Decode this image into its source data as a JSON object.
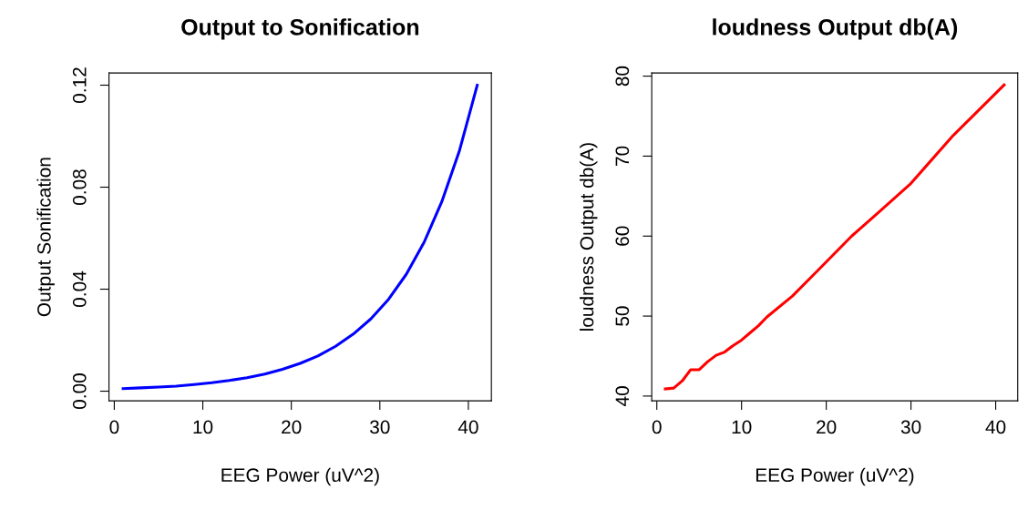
{
  "chart_data": [
    {
      "type": "line",
      "title": "Output to Sonification",
      "xlabel": "EEG Power (uV^2)",
      "ylabel": "Output Sonification",
      "x": [
        1,
        3,
        5,
        7,
        9,
        11,
        13,
        15,
        17,
        19,
        21,
        23,
        25,
        27,
        29,
        31,
        33,
        35,
        37,
        39,
        41
      ],
      "series": [
        {
          "color": "#0000ff",
          "values": [
            0.001,
            0.0013,
            0.0016,
            0.002,
            0.0026,
            0.0033,
            0.0042,
            0.0053,
            0.0067,
            0.0086,
            0.0109,
            0.0138,
            0.0176,
            0.0224,
            0.0284,
            0.0361,
            0.0459,
            0.0584,
            0.0743,
            0.0944,
            0.12
          ]
        }
      ],
      "xlim": [
        -0.6,
        42.6
      ],
      "xticks": [
        0,
        10,
        20,
        30,
        40
      ],
      "ylim": [
        -0.0038,
        0.1248
      ],
      "yticks": [
        {
          "value": 0,
          "label": "0.00"
        },
        0.04,
        0.08,
        0.12
      ]
    },
    {
      "type": "line",
      "title": "loudness Output db(A)",
      "xlabel": "EEG Power (uV^2)",
      "ylabel": "loudness Output db(A)",
      "x": [
        1,
        2,
        3,
        4,
        5,
        6,
        7,
        8,
        9,
        10,
        11,
        12,
        13,
        16,
        19,
        23,
        26,
        30,
        35,
        41
      ],
      "series": [
        {
          "color": "#ff0000",
          "values": [
            40.9,
            41.0,
            41.9,
            43.3,
            43.3,
            44.3,
            45.1,
            45.5,
            46.3,
            47.0,
            47.9,
            48.8,
            49.9,
            52.5,
            55.7,
            60.0,
            62.8,
            66.6,
            72.6,
            78.9
          ]
        }
      ],
      "xlim": [
        -0.6,
        42.6
      ],
      "xticks": [
        0,
        10,
        20,
        30,
        40
      ],
      "ylim": [
        39.4,
        80.4
      ],
      "yticks": [
        40,
        50,
        60,
        70,
        80
      ]
    }
  ]
}
